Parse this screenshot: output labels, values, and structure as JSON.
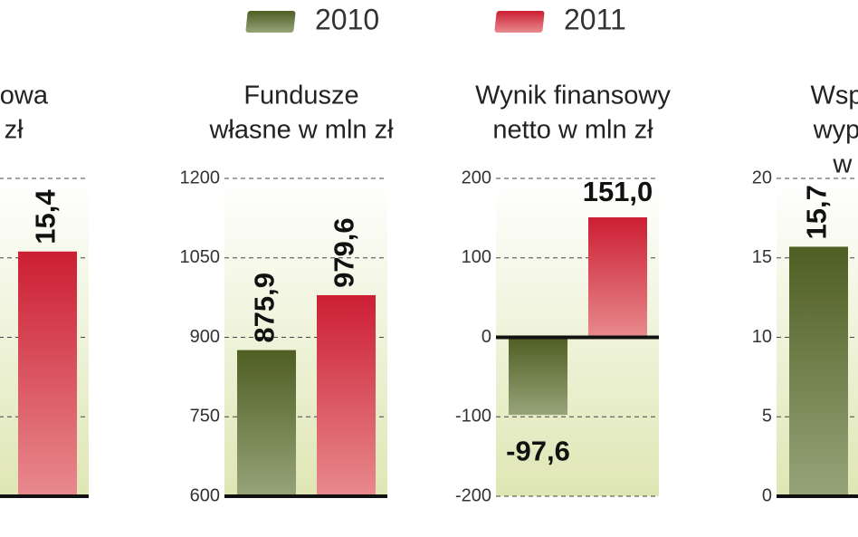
{
  "legend": [
    {
      "name": "2010",
      "color": "#5d6b2e"
    },
    {
      "name": "2011",
      "color": "#d42a3c"
    }
  ],
  "chart_data": [
    {
      "type": "bar",
      "title": [
        "ansowa",
        "d zł"
      ],
      "values": [
        null,
        15.4
      ],
      "value_labels": [
        null,
        "15,4"
      ],
      "ylim": [
        0,
        20
      ],
      "yticks": [
        0,
        5,
        10,
        15,
        20
      ],
      "grid": true,
      "rotate_labels": true
    },
    {
      "type": "bar",
      "title": [
        "Fundusze",
        "własne w mln zł"
      ],
      "values": [
        875.9,
        979.6
      ],
      "value_labels": [
        "875,9",
        "979,6"
      ],
      "ylim": [
        600,
        1200
      ],
      "yticks": [
        600,
        750,
        900,
        1050,
        1200
      ],
      "grid": true,
      "rotate_labels": true
    },
    {
      "type": "bar",
      "title": [
        "Wynik finansowy",
        "netto w mln zł"
      ],
      "values": [
        -97.6,
        151.0
      ],
      "value_labels": [
        "-97,6",
        "151,0"
      ],
      "ylim": [
        -200,
        200
      ],
      "yticks": [
        -200,
        -100,
        0,
        100,
        200
      ],
      "grid": true,
      "rotate_labels": false
    },
    {
      "type": "bar",
      "title": [
        "Współc",
        "wypłac",
        "w p"
      ],
      "values": [
        15.7,
        null
      ],
      "value_labels": [
        "15,7",
        null
      ],
      "ylim": [
        0,
        20
      ],
      "yticks": [
        0,
        5,
        10,
        15,
        20
      ],
      "grid": true,
      "rotate_labels": true
    }
  ]
}
